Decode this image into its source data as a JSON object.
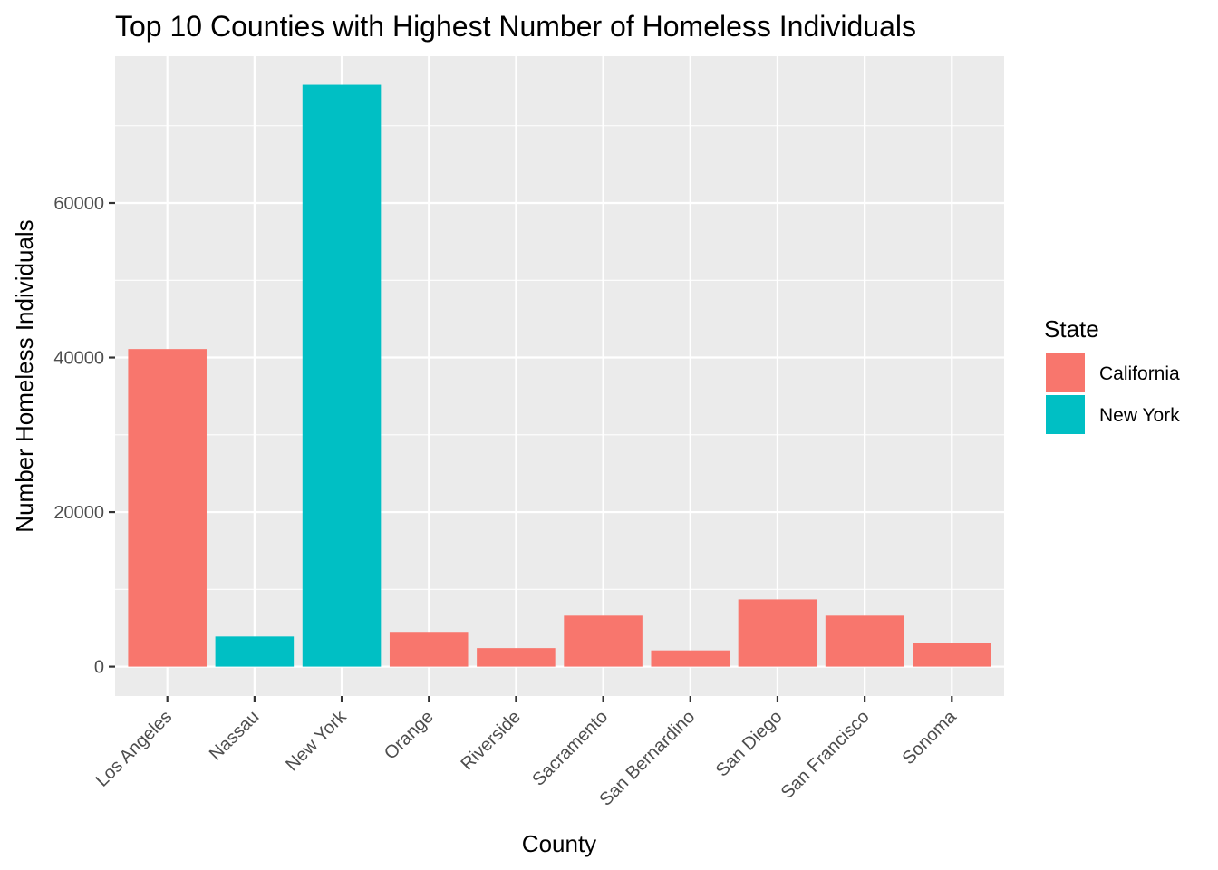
{
  "chart_data": {
    "type": "bar",
    "title": "Top 10 Counties with Highest Number of Homeless Individuals",
    "xlabel": "County",
    "ylabel": "Number Homeless Individuals",
    "categories": [
      "Los Angeles",
      "Nassau",
      "New York",
      "Orange",
      "Riverside",
      "Sacramento",
      "San Bernardino",
      "San Diego",
      "San Francisco",
      "Sonoma"
    ],
    "values": [
      41100,
      3900,
      75300,
      4500,
      2400,
      6600,
      2100,
      8700,
      6600,
      3100
    ],
    "states": [
      "California",
      "New York",
      "New York",
      "California",
      "California",
      "California",
      "California",
      "California",
      "California",
      "California"
    ],
    "ylim": [
      -3800,
      79000
    ],
    "y_ticks": [
      0,
      20000,
      40000,
      60000
    ],
    "y_tick_labels": [
      "0",
      "20000",
      "40000",
      "60000"
    ],
    "grid": true,
    "legend": {
      "title": "State",
      "placement": "right",
      "entries": [
        {
          "name": "California",
          "color": "#F8766D"
        },
        {
          "name": "New York",
          "color": "#00BFC4"
        }
      ]
    },
    "colors": {
      "panel_background": "#EBEBEB",
      "grid": "#FFFFFF"
    }
  }
}
